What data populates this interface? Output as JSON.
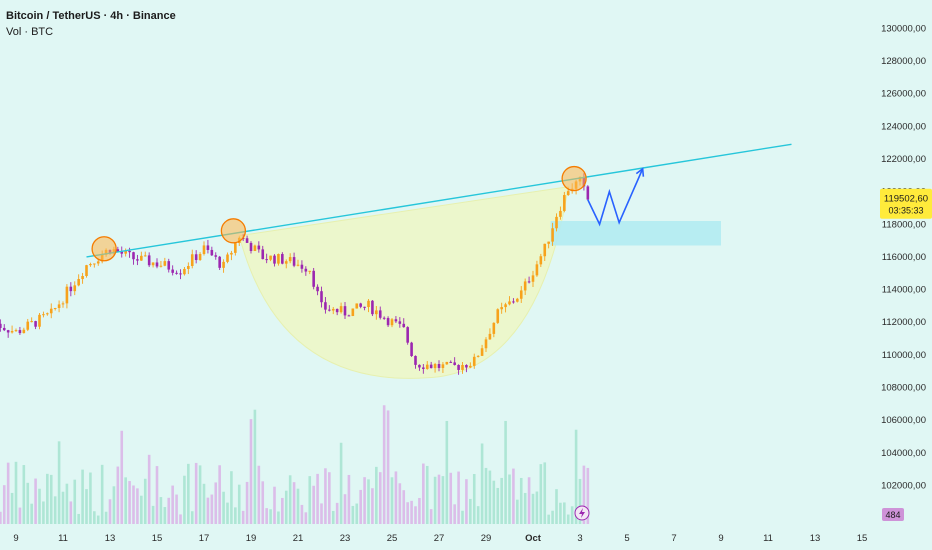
{
  "header": {
    "title": "Bitcoin / TetherUS · 4h · Binance",
    "volume_label": "Vol · BTC"
  },
  "price_tag": {
    "price": "119502,60",
    "countdown": "03:35:33"
  },
  "volume_tag": "484",
  "colors": {
    "up": "#f7a21b",
    "down": "#9c27b0",
    "trendline": "#26c6da",
    "support_zone": "#b2ebf2",
    "cup_fill": "#eef7c8",
    "projection": "#2962ff",
    "price_tag_bg": "#ffeb3b",
    "volume_tag_bg": "#ce93d8"
  },
  "chart_data": {
    "type": "candlestick",
    "ylim": [
      100500,
      131000
    ],
    "y_ticks": [
      "130000,00",
      "128000,00",
      "126000,00",
      "124000,00",
      "122000,00",
      "120000,00",
      "118000,00",
      "116000,00",
      "114000,00",
      "112000,00",
      "110000,00",
      "108000,00",
      "106000,00",
      "104000,00",
      "102000,00"
    ],
    "x_ticks": [
      "9",
      "11",
      "13",
      "15",
      "17",
      "19",
      "21",
      "23",
      "25",
      "27",
      "29",
      "Oct",
      "3",
      "5",
      "7",
      "9",
      "11",
      "13",
      "15"
    ],
    "waypoints": [
      {
        "x": "Sep 8 00:00",
        "price": 112000
      },
      {
        "x": "Sep 9 00:00",
        "price": 111400
      },
      {
        "x": "Sep 10 12:00",
        "price": 112500
      },
      {
        "x": "Sep 12 00:00",
        "price": 115500
      },
      {
        "x": "Sep 13 00:00",
        "price": 116500
      },
      {
        "x": "Sep 14 00:00",
        "price": 115900
      },
      {
        "x": "Sep 15 00:00",
        "price": 115600
      },
      {
        "x": "Sep 16 00:00",
        "price": 115200
      },
      {
        "x": "Sep 17 00:00",
        "price": 116500
      },
      {
        "x": "Sep 17 20:00",
        "price": 115400
      },
      {
        "x": "Sep 18 12:00",
        "price": 117300
      },
      {
        "x": "Sep 19 12:00",
        "price": 116000
      },
      {
        "x": "Sep 20 12:00",
        "price": 115800
      },
      {
        "x": "Sep 21 12:00",
        "price": 115300
      },
      {
        "x": "Sep 22 00:00",
        "price": 112900
      },
      {
        "x": "Sep 23 00:00",
        "price": 112600
      },
      {
        "x": "Sep 24 00:00",
        "price": 113000
      },
      {
        "x": "Sep 25 12:00",
        "price": 111500
      },
      {
        "x": "Sep 26 00:00",
        "price": 109500
      },
      {
        "x": "Sep 27 12:00",
        "price": 109200
      },
      {
        "x": "Sep 28 12:00",
        "price": 109600
      },
      {
        "x": "Sep 29 12:00",
        "price": 112500
      },
      {
        "x": "Sep 30 12:00",
        "price": 113800
      },
      {
        "x": "Oct 1 12:00",
        "price": 116500
      },
      {
        "x": "Oct 2 00:00",
        "price": 118600
      },
      {
        "x": "Oct 2 12:00",
        "price": 120200
      },
      {
        "x": "Oct 3 00:00",
        "price": 120600
      },
      {
        "x": "Oct 3 08:00",
        "price": 119500
      }
    ],
    "trendline": [
      {
        "x": "Sep 12 00:00",
        "price": 116000
      },
      {
        "x": "Oct 12 00:00",
        "price": 122900
      }
    ],
    "touch_points": [
      {
        "x": "Sep 12 18:00",
        "price": 116500
      },
      {
        "x": "Sep 18 06:00",
        "price": 117600
      },
      {
        "x": "Oct 2 18:00",
        "price": 120800
      }
    ],
    "support_zone": {
      "x_start": "Oct 1 18:00",
      "x_end": "Oct 9 00:00",
      "price_low": 116700,
      "price_high": 118200
    },
    "projection": [
      {
        "x": "Oct 3 08:00",
        "price": 119500
      },
      {
        "x": "Oct 3 20:00",
        "price": 118000
      },
      {
        "x": "Oct 4 06:00",
        "price": 120000
      },
      {
        "x": "Oct 4 16:00",
        "price": 118100
      },
      {
        "x": "Oct 5 16:00",
        "price": 121400
      }
    ],
    "cup": {
      "x_start": "Sep 18 12:00",
      "x_bottom": "Sep 26 12:00",
      "x_end": "Oct 2 12:00",
      "price_bottom": 108600
    }
  }
}
